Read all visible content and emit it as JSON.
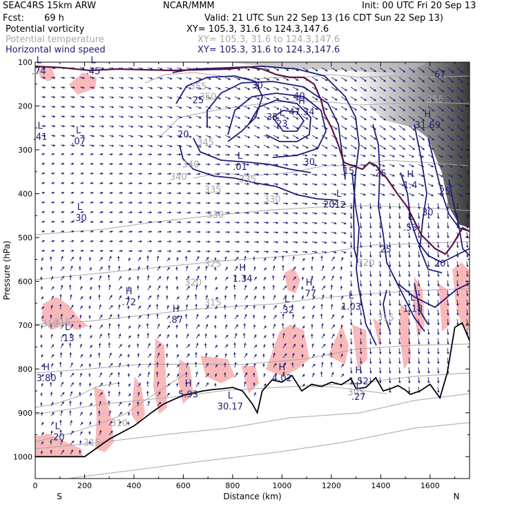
{
  "header": {
    "model": "SEAC4RS 15km ARW",
    "center": "NCAR/MMM",
    "init": "Init: 00 UTC Fri 20 Sep 13",
    "fcst_label": "Fcst:",
    "fcst_value": "69 h",
    "valid": "Valid: 21 UTC Sun 22 Sep 13 (16 CDT Sun 22 Sep 13)",
    "field1": "Potential vorticity",
    "field2": "Potential temperature",
    "field3": "Horizontal wind speed",
    "xy1": "XY= 105.3, 31.6 to 124.3,147.6",
    "xy2": "XY= 105.3, 31.6 to 124.3,147.6",
    "xy3": "XY= 105.3, 31.6 to 124.3,147.6"
  },
  "colors": {
    "pv_fill": "#f9b9b9",
    "theta": "#a6a6a6",
    "wind": "#1c1c78",
    "tropo": "#5a1440",
    "terrain": "#000000"
  },
  "chart_data": {
    "type": "cross-section",
    "xlabel": "Distance (km)",
    "ylabel": "Pressure (hPa)",
    "xlim": [
      0,
      1760
    ],
    "ylim": [
      1050,
      100
    ],
    "x_ticks": [
      0,
      200,
      400,
      600,
      800,
      1000,
      1200,
      1400,
      1600
    ],
    "x_tick_labels": [
      "0",
      "200",
      "400",
      "600",
      "800",
      "1000",
      "1200",
      "1400",
      "1600"
    ],
    "y_ticks": [
      100,
      200,
      300,
      400,
      500,
      600,
      700,
      800,
      900,
      1000
    ],
    "y_tick_labels": [
      "100",
      "200",
      "300",
      "400",
      "500",
      "600",
      "700",
      "800",
      "900",
      "1000"
    ],
    "endpoints": {
      "left": "S",
      "right": "N"
    },
    "terrain": [
      [
        0,
        1000
      ],
      [
        120,
        1000
      ],
      [
        200,
        1000
      ],
      [
        300,
        960
      ],
      [
        400,
        930
      ],
      [
        470,
        900
      ],
      [
        520,
        880
      ],
      [
        560,
        870
      ],
      [
        600,
        860
      ],
      [
        640,
        855
      ],
      [
        680,
        850
      ],
      [
        720,
        847
      ],
      [
        760,
        845
      ],
      [
        800,
        842
      ],
      [
        840,
        850
      ],
      [
        880,
        880
      ],
      [
        900,
        900
      ],
      [
        920,
        850
      ],
      [
        960,
        825
      ],
      [
        1000,
        830
      ],
      [
        1040,
        815
      ],
      [
        1080,
        850
      ],
      [
        1120,
        835
      ],
      [
        1160,
        840
      ],
      [
        1200,
        830
      ],
      [
        1240,
        836
      ],
      [
        1280,
        822
      ],
      [
        1300,
        845
      ],
      [
        1340,
        842
      ],
      [
        1380,
        820
      ],
      [
        1410,
        850
      ],
      [
        1440,
        845
      ],
      [
        1470,
        838
      ],
      [
        1500,
        848
      ],
      [
        1520,
        858
      ],
      [
        1560,
        850
      ],
      [
        1600,
        835
      ],
      [
        1640,
        866
      ],
      [
        1670,
        808
      ],
      [
        1700,
        705
      ],
      [
        1730,
        695
      ],
      [
        1760,
        735
      ]
    ],
    "theta_contours": [
      {
        "level": "315",
        "label_x": 110,
        "label_p": 700
      },
      {
        "level": "315",
        "label_x": 720,
        "label_p": 655
      },
      {
        "level": "320",
        "label_x": 640,
        "label_p": 610
      },
      {
        "level": "325",
        "label_x": 720,
        "label_p": 567
      },
      {
        "level": "330",
        "label_x": 730,
        "label_p": 455
      },
      {
        "level": "330",
        "label_x": 960,
        "label_p": 420
      },
      {
        "level": "335",
        "label_x": 720,
        "label_p": 398
      },
      {
        "level": "335",
        "label_x": 860,
        "label_p": 374
      },
      {
        "level": "340",
        "label_x": 580,
        "label_p": 369
      },
      {
        "level": "340",
        "label_x": 630,
        "label_p": 340
      },
      {
        "level": "345",
        "label_x": 690,
        "label_p": 290
      },
      {
        "level": "350",
        "label_x": 700,
        "label_p": 186
      },
      {
        "level": "355",
        "label_x": 660,
        "label_p": 162
      },
      {
        "level": "355",
        "label_x": 1620,
        "label_p": 192
      },
      {
        "level": "320",
        "label_x": 1340,
        "label_p": 565
      },
      {
        "level": "315",
        "label_x": 1420,
        "label_p": 690
      },
      {
        "level": "310",
        "label_x": 60,
        "label_p": 704
      },
      {
        "level": "315",
        "label_x": 230,
        "label_p": 975
      },
      {
        "level": "310",
        "label_x": 340,
        "label_p": 930
      },
      {
        "level": "305",
        "label_x": 1300,
        "label_p": 860
      }
    ],
    "wind_contours": [
      {
        "level": "25",
        "label_x": 660,
        "label_p": 194
      },
      {
        "level": "20",
        "label_x": 600,
        "label_p": 272
      },
      {
        "level": "30",
        "label_x": 900,
        "label_p": 160
      },
      {
        "level": "35",
        "label_x": 960,
        "label_p": 232
      },
      {
        "level": "40",
        "label_x": 1070,
        "label_p": 184
      },
      {
        "level": "30",
        "label_x": 1110,
        "label_p": 335
      },
      {
        "level": "20",
        "label_x": 1190,
        "label_p": 432
      },
      {
        "level": "25",
        "label_x": 1400,
        "label_p": 361
      },
      {
        "level": "25",
        "label_x": 1420,
        "label_p": 534
      },
      {
        "level": "30",
        "label_x": 1590,
        "label_p": 450
      },
      {
        "level": "25",
        "label_x": 1660,
        "label_p": 402
      },
      {
        "level": "20",
        "label_x": 1640,
        "label_p": 566
      },
      {
        "level": "15",
        "label_x": 1270,
        "label_p": 355
      },
      {
        "level": "67",
        "label_x": 1640,
        "label_p": 135
      }
    ],
    "hl_marks": [
      {
        "type": "L",
        "value": ".74",
        "x": 15,
        "p": 115
      },
      {
        "type": "L",
        "value": ".45",
        "x": 235,
        "p": 115
      },
      {
        "type": "L",
        "value": ".41",
        "x": 20,
        "p": 265
      },
      {
        "type": "L",
        "value": ".07",
        "x": 175,
        "p": 275
      },
      {
        "type": "L",
        "value": ".30",
        "x": 180,
        "p": 450
      },
      {
        "type": "H",
        "value": ".72",
        "x": 380,
        "p": 642
      },
      {
        "type": "H",
        "value": ".87",
        "x": 570,
        "p": 682
      },
      {
        "type": "L",
        "value": ".13",
        "x": 130,
        "p": 724
      },
      {
        "type": "H",
        "value": "3.80",
        "x": 45,
        "p": 815
      },
      {
        "type": "H",
        "value": "5.93",
        "x": 620,
        "p": 852
      },
      {
        "type": "L",
        "value": ".20",
        "x": 90,
        "p": 950
      },
      {
        "type": "H",
        "value": "1.34",
        "x": 840,
        "p": 588
      },
      {
        "type": "L",
        "value": ".32",
        "x": 1020,
        "p": 660
      },
      {
        "type": "H",
        "value": ".77",
        "x": 1110,
        "p": 622
      },
      {
        "type": "L",
        "value": "1.03",
        "x": 1280,
        "p": 652
      },
      {
        "type": "L",
        "value": "1.18",
        "x": 1530,
        "p": 657
      },
      {
        "type": "H",
        "value": "4.02",
        "x": 1000,
        "p": 815
      },
      {
        "type": "H",
        "value": "1.52",
        "x": 1310,
        "p": 822
      },
      {
        "type": "L",
        "value": ".27",
        "x": 1310,
        "p": 858
      },
      {
        "type": "L",
        "value": "30.17",
        "x": 790,
        "p": 880
      },
      {
        "type": "L",
        "value": ".01",
        "x": 830,
        "p": 333
      },
      {
        "type": "H",
        "value": "47.34",
        "x": 1080,
        "p": 208
      },
      {
        "type": "L",
        "value": "23",
        "x": 1000,
        "p": 235
      },
      {
        "type": "L",
        "value": ".12",
        "x": 1230,
        "p": 420
      },
      {
        "type": "H",
        "value": "1.4",
        "x": 1520,
        "p": 375
      },
      {
        "type": "H",
        "value": "31.69",
        "x": 1590,
        "p": 238
      },
      {
        "type": "L",
        "value": ".53",
        "x": 1520,
        "p": 472
      }
    ]
  }
}
